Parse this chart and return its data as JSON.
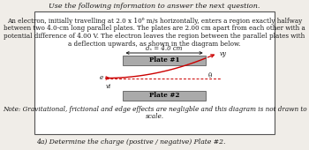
{
  "title": "Use the following information to answer the next question.",
  "body_text_lines": [
    "An electron, initially travelling at 2.0 x 10⁶ m/s horizontally, enters a region exactly halfway",
    "between two 4.0-cm long parallel plates. The plates are 2.00 cm apart from each other with a",
    "potential difference of 4.00 V. The electron leaves the region between the parallel plates with",
    "a deflection upwards, as shown in the diagram below."
  ],
  "note_text_lines": [
    "Note: Gravitational, frictional and edge effects are negligble and this diagram is not drawn to",
    "scale."
  ],
  "question_text": "4a) Determine the charge (postive / negative) Plate #2.",
  "dx_label": "dₓ = 4.0 cm",
  "plate1_label": "Plate #1",
  "plate2_label": "Plate #2",
  "vy_label": "vy",
  "vi_label": "vi",
  "theta_label": "θ",
  "e_label": "e",
  "bg_color": "#f0ede8",
  "plate_color": "#aaaaaa",
  "arrow_color": "#cc0000",
  "text_color": "#1a1a1a",
  "border_color": "#555555",
  "title_fontsize": 5.8,
  "body_fontsize": 5.2,
  "note_fontsize": 5.2,
  "question_fontsize": 5.5,
  "diagram_label_fontsize": 5.0,
  "plate_label_fontsize": 5.2
}
